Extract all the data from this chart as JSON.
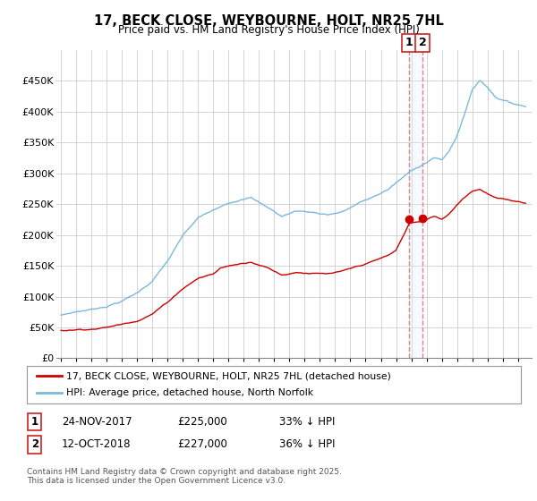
{
  "title": "17, BECK CLOSE, WEYBOURNE, HOLT, NR25 7HL",
  "subtitle": "Price paid vs. HM Land Registry's House Price Index (HPI)",
  "legend_line1": "17, BECK CLOSE, WEYBOURNE, HOLT, NR25 7HL (detached house)",
  "legend_line2": "HPI: Average price, detached house, North Norfolk",
  "footnote": "Contains HM Land Registry data © Crown copyright and database right 2025.\nThis data is licensed under the Open Government Licence v3.0.",
  "annotation1": {
    "num": "1",
    "date": "24-NOV-2017",
    "price": "£225,000",
    "pct": "33% ↓ HPI"
  },
  "annotation2": {
    "num": "2",
    "date": "12-OCT-2018",
    "price": "£227,000",
    "pct": "36% ↓ HPI"
  },
  "hpi_color": "#7ab8e0",
  "price_color": "#cc0000",
  "vline_color": "#e88080",
  "shade_color": "#ddeeff",
  "background_color": "#ffffff",
  "grid_color": "#cccccc",
  "ylim": [
    0,
    500000
  ],
  "yticks": [
    0,
    50000,
    100000,
    150000,
    200000,
    250000,
    300000,
    350000,
    400000,
    450000
  ],
  "ytick_labels": [
    "£0",
    "£50K",
    "£100K",
    "£150K",
    "£200K",
    "£250K",
    "£300K",
    "£350K",
    "£400K",
    "£450K"
  ],
  "xlim_start": 1994.7,
  "xlim_end": 2025.9
}
